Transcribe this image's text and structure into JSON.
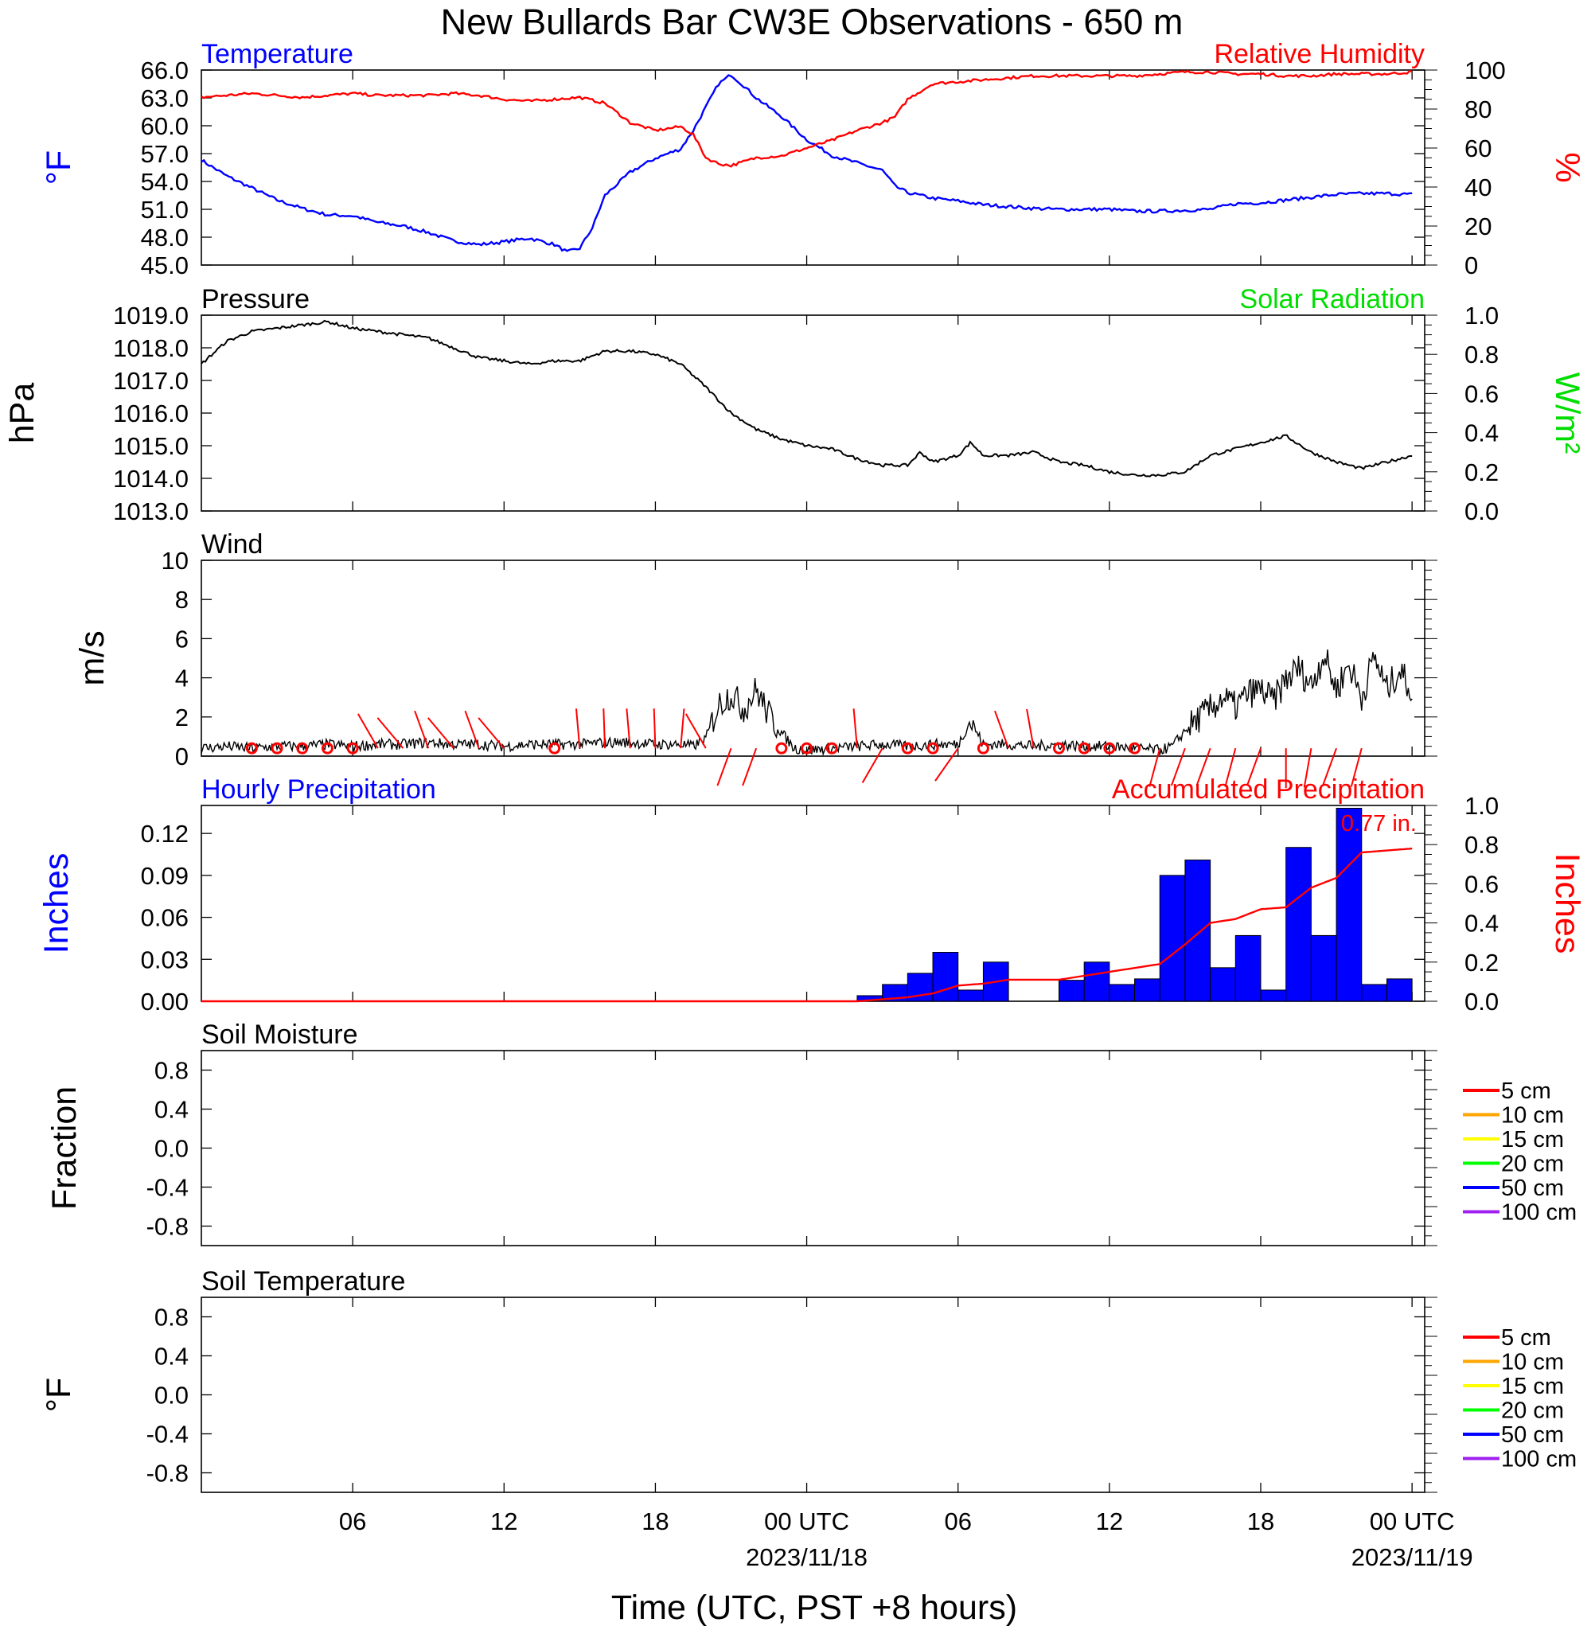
{
  "title": "New Bullards Bar CW3E Observations - 650 m",
  "xaxis": {
    "label": "Time (UTC, PST +8 hours)",
    "tick_labels": [
      "06",
      "12",
      "18",
      "00 UTC",
      "06",
      "12",
      "18",
      "00 UTC"
    ],
    "tick_hours": [
      6,
      12,
      18,
      24,
      30,
      36,
      42,
      48
    ],
    "date_labels": [
      "2023/11/18",
      "2023/11/19"
    ],
    "date_hours": [
      24,
      48
    ]
  },
  "colors": {
    "temperature": "#0000ff",
    "humidity": "#ff0000",
    "pressure": "#000000",
    "solar": "#00dd00",
    "wind": "#000000",
    "barb": "#ff0000",
    "hourly_precip": "#0000ff",
    "accum_precip": "#ff0000"
  },
  "chart_data": [
    {
      "id": "temp_rh",
      "type": "line",
      "left_title": "Temperature",
      "right_title": "Relative Humidity",
      "ylabel": "°F",
      "ylabel_right": "%",
      "ylim": [
        45,
        66
      ],
      "ylim_right": [
        0,
        100
      ],
      "yticks": [
        "45.0",
        "48.0",
        "51.0",
        "54.0",
        "57.0",
        "60.0",
        "63.0",
        "66.0"
      ],
      "yticks_right": [
        "0",
        "20",
        "40",
        "60",
        "80",
        "100"
      ],
      "series": [
        {
          "name": "Temperature",
          "axis": "left",
          "x": [
            0,
            1,
            2,
            3,
            4,
            5,
            6,
            7,
            8,
            9,
            10,
            11,
            12,
            13,
            14,
            14.5,
            15,
            15.5,
            16,
            17,
            18,
            19,
            19.5,
            20,
            20.5,
            21,
            21.5,
            22,
            23,
            24,
            25,
            26,
            27,
            27.5,
            28,
            29,
            30,
            31,
            32,
            33,
            34,
            35,
            36,
            37,
            38,
            39,
            40,
            41,
            42,
            43,
            44,
            45,
            46,
            47,
            48
          ],
          "values": [
            56.3,
            54.6,
            53.3,
            52.0,
            51.1,
            50.4,
            50.3,
            49.6,
            49.2,
            48.5,
            47.6,
            47.2,
            47.5,
            47.9,
            47.2,
            46.4,
            46.8,
            49.0,
            52.5,
            55.0,
            56.5,
            57.5,
            59.5,
            62.0,
            64.5,
            65.5,
            64.3,
            63.0,
            61.0,
            58.5,
            56.8,
            56.0,
            55.2,
            53.5,
            52.8,
            52.2,
            51.9,
            51.5,
            51.3,
            51.1,
            51.0,
            51.0,
            51.0,
            50.8,
            50.8,
            50.9,
            51.0,
            51.6,
            51.7,
            52.0,
            52.3,
            52.6,
            52.7,
            52.7,
            52.6
          ]
        },
        {
          "name": "Relative Humidity",
          "axis": "right",
          "x": [
            0,
            1,
            2,
            3,
            4,
            5,
            6,
            7,
            8,
            9,
            10,
            11,
            12,
            13,
            14,
            15,
            16,
            17,
            18,
            19,
            19.5,
            20,
            20.5,
            21,
            22,
            23,
            24,
            25,
            26,
            27,
            27.5,
            28,
            29,
            30,
            31,
            32,
            33,
            34,
            35,
            36,
            37,
            38,
            39,
            40,
            41,
            42,
            43,
            44,
            45,
            46,
            47,
            48
          ],
          "values": [
            86,
            87,
            88,
            87,
            86,
            87,
            88,
            87,
            87,
            87,
            88,
            87,
            85,
            84,
            85,
            86,
            83,
            73,
            69,
            71,
            67,
            55,
            52,
            51,
            55,
            56,
            60,
            64,
            69,
            73,
            76,
            85,
            93,
            94,
            95,
            96,
            97,
            97,
            97,
            97,
            97,
            98,
            99,
            99,
            98,
            98,
            97,
            97,
            98,
            98,
            98,
            99
          ]
        }
      ]
    },
    {
      "id": "pressure",
      "type": "line",
      "left_title": "Pressure",
      "right_title": "Solar Radiation",
      "ylabel": "hPa",
      "ylabel_right": "W/m²",
      "ylim": [
        1013,
        1019
      ],
      "ylim_right": [
        0,
        1
      ],
      "yticks": [
        "1013.0",
        "1014.0",
        "1015.0",
        "1016.0",
        "1017.0",
        "1018.0",
        "1019.0"
      ],
      "yticks_right": [
        "0.0",
        "0.2",
        "0.4",
        "0.6",
        "0.8",
        "1.0"
      ],
      "series": [
        {
          "name": "Pressure",
          "axis": "left",
          "x": [
            0,
            1,
            2,
            3,
            4,
            5,
            6,
            7,
            8,
            9,
            10,
            11,
            12,
            13,
            14,
            15,
            16,
            17,
            18,
            19,
            20,
            21,
            22,
            23,
            24,
            25,
            26,
            27,
            27.5,
            28,
            28.5,
            29,
            29.5,
            30,
            30.5,
            31,
            32,
            33,
            34,
            35,
            36,
            37,
            38,
            39,
            40,
            41,
            42,
            43,
            44,
            45,
            46,
            47,
            48
          ],
          "values": [
            1017.5,
            1018.2,
            1018.5,
            1018.6,
            1018.7,
            1018.8,
            1018.6,
            1018.5,
            1018.4,
            1018.3,
            1018.0,
            1017.7,
            1017.6,
            1017.5,
            1017.6,
            1017.6,
            1017.9,
            1017.9,
            1017.8,
            1017.5,
            1016.8,
            1016.0,
            1015.5,
            1015.2,
            1015.0,
            1014.9,
            1014.6,
            1014.4,
            1014.4,
            1014.4,
            1014.8,
            1014.5,
            1014.6,
            1014.7,
            1015.1,
            1014.7,
            1014.7,
            1014.8,
            1014.5,
            1014.4,
            1014.2,
            1014.1,
            1014.1,
            1014.2,
            1014.7,
            1014.9,
            1015.1,
            1015.3,
            1014.8,
            1014.5,
            1014.3,
            1014.5,
            1014.7
          ]
        }
      ]
    },
    {
      "id": "wind",
      "type": "line",
      "left_title": "Wind",
      "ylabel": "m/s",
      "ylim": [
        0,
        10
      ],
      "yticks": [
        "0",
        "2",
        "4",
        "6",
        "8",
        "10"
      ],
      "series": [
        {
          "name": "Wind",
          "axis": "left",
          "x": [
            0,
            1,
            2,
            3,
            4,
            5,
            6,
            7,
            8,
            9,
            10,
            11,
            12,
            13,
            14,
            15,
            16,
            17,
            18,
            19,
            19.5,
            20,
            20.5,
            21,
            21.5,
            22,
            22.5,
            23,
            23.5,
            24,
            25,
            26,
            27,
            28,
            29,
            30,
            30.5,
            31,
            32,
            33,
            34,
            35,
            36,
            37,
            38,
            38.5,
            39,
            39.5,
            40,
            40.5,
            41,
            41.5,
            42,
            42.5,
            43,
            43.5,
            44,
            44.5,
            45,
            45.5,
            46,
            46.5,
            47,
            47.5,
            48
          ],
          "values": [
            0.4,
            0.5,
            0.4,
            0.5,
            0.5,
            0.6,
            0.5,
            0.6,
            0.6,
            0.7,
            0.6,
            0.6,
            0.5,
            0.6,
            0.6,
            0.6,
            0.7,
            0.7,
            0.6,
            0.6,
            0.5,
            0.9,
            2.6,
            3.2,
            2.4,
            3.4,
            2.1,
            1.2,
            0.4,
            0.3,
            0.4,
            0.5,
            0.6,
            0.5,
            0.6,
            0.6,
            1.8,
            0.6,
            0.6,
            0.5,
            0.6,
            0.5,
            0.5,
            0.4,
            0.3,
            0.5,
            1.3,
            1.9,
            2.4,
            3.0,
            2.5,
            3.2,
            3.4,
            2.8,
            3.9,
            4.5,
            3.6,
            5.2,
            3.4,
            4.7,
            3.0,
            5.1,
            3.4,
            4.4,
            3.3
          ]
        }
      ],
      "barbs": [
        {
          "x": 2,
          "calm": true
        },
        {
          "x": 3,
          "calm": true
        },
        {
          "x": 4,
          "calm": true
        },
        {
          "x": 5,
          "calm": true
        },
        {
          "x": 6,
          "calm": true
        },
        {
          "x": 7,
          "dir": 330
        },
        {
          "x": 8,
          "dir": 320
        },
        {
          "x": 9,
          "dir": 340
        },
        {
          "x": 10,
          "dir": 320
        },
        {
          "x": 11,
          "dir": 340
        },
        {
          "x": 12,
          "dir": 320
        },
        {
          "x": 14,
          "calm": true
        },
        {
          "x": 15,
          "dir": 355
        },
        {
          "x": 16,
          "dir": 358
        },
        {
          "x": 17,
          "dir": 355
        },
        {
          "x": 18,
          "dir": 358
        },
        {
          "x": 19,
          "dir": 5
        },
        {
          "x": 20,
          "dir": 330
        },
        {
          "x": 21,
          "dir": 200
        },
        {
          "x": 22,
          "dir": 200
        },
        {
          "x": 23,
          "calm": true
        },
        {
          "x": 24,
          "calm": true
        },
        {
          "x": 25,
          "calm": true
        },
        {
          "x": 26,
          "dir": 355
        },
        {
          "x": 27,
          "dir": 210
        },
        {
          "x": 28,
          "calm": true
        },
        {
          "x": 29,
          "calm": true
        },
        {
          "x": 30,
          "dir": 215
        },
        {
          "x": 31,
          "calm": true
        },
        {
          "x": 32,
          "dir": 340
        },
        {
          "x": 33,
          "dir": 350
        },
        {
          "x": 34,
          "calm": true
        },
        {
          "x": 35,
          "calm": true
        },
        {
          "x": 36,
          "calm": true
        },
        {
          "x": 37,
          "calm": true
        },
        {
          "x": 38,
          "dir": 195
        },
        {
          "x": 39,
          "dir": 200
        },
        {
          "x": 40,
          "dir": 200
        },
        {
          "x": 41,
          "dir": 195
        },
        {
          "x": 42,
          "dir": 200
        },
        {
          "x": 43,
          "dir": 180
        },
        {
          "x": 44,
          "dir": 190
        },
        {
          "x": 45,
          "dir": 200
        },
        {
          "x": 46,
          "dir": 195
        }
      ]
    },
    {
      "id": "precip",
      "type": "bar",
      "left_title": "Hourly Precipitation",
      "right_title": "Accumulated Precipitation",
      "annotation": "0.77 in.",
      "ylabel": "Inches",
      "ylabel_right": "Inches",
      "ylim": [
        0,
        0.14
      ],
      "ylim_right": [
        0,
        1.0
      ],
      "yticks": [
        "0.00",
        "0.03",
        "0.06",
        "0.09",
        "0.12"
      ],
      "yticks_right": [
        "0.0",
        "0.2",
        "0.4",
        "0.6",
        "0.8",
        "1.0"
      ],
      "hours": [
        26,
        27,
        28,
        29,
        30,
        31,
        32,
        33,
        34,
        35,
        36,
        37,
        38,
        39,
        40,
        41,
        42,
        43,
        44,
        45,
        46,
        47
      ],
      "values": [
        0.004,
        0.012,
        0.02,
        0.035,
        0.008,
        0.028,
        0.0,
        0.0,
        0.015,
        0.028,
        0.012,
        0.016,
        0.09,
        0.101,
        0.024,
        0.047,
        0.008,
        0.11,
        0.047,
        0.138,
        0.012,
        0.016
      ],
      "accum": {
        "x": [
          0,
          26,
          27,
          28,
          29,
          30,
          31,
          32,
          33,
          34,
          35,
          36,
          37,
          38,
          39,
          40,
          41,
          42,
          43,
          44,
          45,
          46,
          47,
          48
        ],
        "values": [
          0,
          0,
          0.01,
          0.02,
          0.04,
          0.08,
          0.09,
          0.11,
          0.11,
          0.11,
          0.13,
          0.15,
          0.17,
          0.19,
          0.29,
          0.4,
          0.42,
          0.47,
          0.48,
          0.58,
          0.63,
          0.76,
          0.77,
          0.78
        ]
      }
    },
    {
      "id": "soil_moisture",
      "type": "line",
      "left_title": "Soil Moisture",
      "ylabel": "Fraction",
      "ylim": [
        -1,
        1
      ],
      "yticks": [
        "-0.8",
        "-0.4",
        "0.0",
        "0.4",
        "0.8"
      ],
      "series": []
    },
    {
      "id": "soil_temperature",
      "type": "line",
      "left_title": "Soil Temperature",
      "ylabel": "°F",
      "ylim": [
        -1,
        1
      ],
      "yticks": [
        "-0.8",
        "-0.4",
        "0.0",
        "0.4",
        "0.8"
      ],
      "series": []
    }
  ],
  "soil_legend": [
    {
      "label": "5 cm",
      "color": "#ff0000"
    },
    {
      "label": "10 cm",
      "color": "#ffa500"
    },
    {
      "label": "15 cm",
      "color": "#ffff00"
    },
    {
      "label": "20 cm",
      "color": "#00ff00"
    },
    {
      "label": "50 cm",
      "color": "#0000ff"
    },
    {
      "label": "100 cm",
      "color": "#a020f0"
    }
  ]
}
